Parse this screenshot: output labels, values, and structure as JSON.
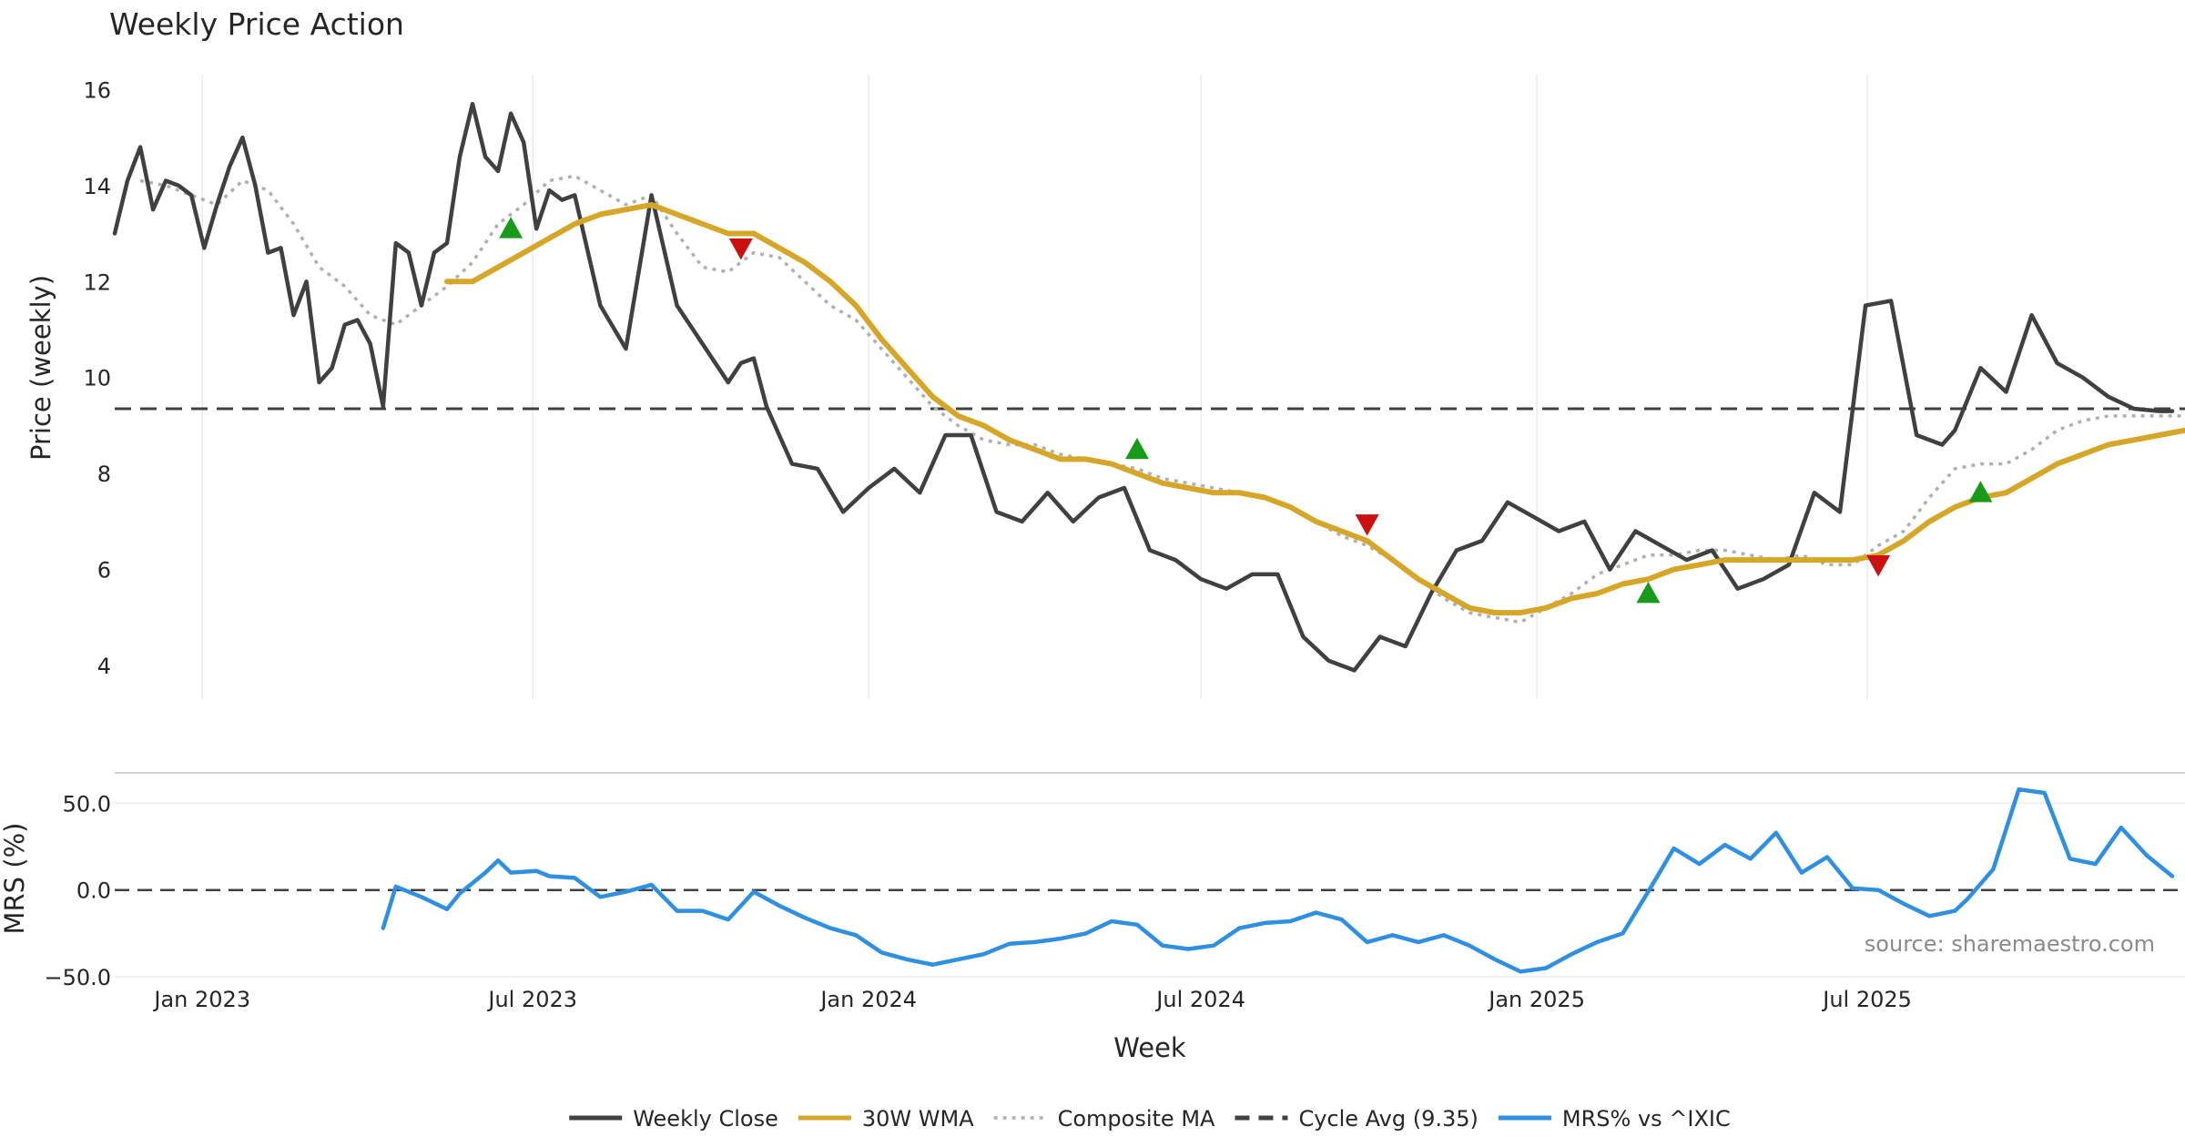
{
  "chart_data": [
    {
      "type": "line",
      "title": "Weekly Price Action",
      "ylabel": "Price (weekly)",
      "ylim": [
        3.3,
        16.5
      ],
      "yticks": [
        "4",
        "6",
        "8",
        "10",
        "12",
        "14",
        "16"
      ],
      "grid": "vertical",
      "reference_line": {
        "name": "Cycle Avg (9.35)",
        "value": 9.35
      },
      "series": [
        {
          "name": "Weekly Close",
          "color": "#404040",
          "style": "solid",
          "x": [
            "2022-11-14",
            "2022-11-21",
            "2022-11-28",
            "2022-12-05",
            "2022-12-12",
            "2022-12-19",
            "2022-12-26",
            "2023-01-02",
            "2023-01-09",
            "2023-01-16",
            "2023-01-23",
            "2023-01-30",
            "2023-02-06",
            "2023-02-13",
            "2023-02-20",
            "2023-02-27",
            "2023-03-06",
            "2023-03-13",
            "2023-03-20",
            "2023-03-27",
            "2023-04-03",
            "2023-04-10",
            "2023-04-17",
            "2023-04-24",
            "2023-05-01",
            "2023-05-08",
            "2023-05-15",
            "2023-05-22",
            "2023-05-29",
            "2023-06-05",
            "2023-06-12",
            "2023-06-19",
            "2023-06-26",
            "2023-07-03",
            "2023-07-10",
            "2023-07-17",
            "2023-07-24",
            "2023-08-07",
            "2023-08-21",
            "2023-09-04",
            "2023-09-18",
            "2023-10-02",
            "2023-10-16",
            "2023-10-23",
            "2023-10-30",
            "2023-11-06",
            "2023-11-13",
            "2023-11-20",
            "2023-12-04",
            "2023-12-18",
            "2024-01-01",
            "2024-01-15",
            "2024-01-29",
            "2024-02-12",
            "2024-02-26",
            "2024-03-11",
            "2024-03-25",
            "2024-04-08",
            "2024-04-22",
            "2024-05-06",
            "2024-05-20",
            "2024-06-03",
            "2024-06-17",
            "2024-07-01",
            "2024-07-15",
            "2024-07-29",
            "2024-08-12",
            "2024-08-26",
            "2024-09-09",
            "2024-09-23",
            "2024-10-07",
            "2024-10-21",
            "2024-11-04",
            "2024-11-18",
            "2024-12-02",
            "2024-12-16",
            "2024-12-30",
            "2025-01-13",
            "2025-01-27",
            "2025-02-10",
            "2025-02-24",
            "2025-03-10",
            "2025-03-24",
            "2025-04-07",
            "2025-04-21",
            "2025-05-05",
            "2025-05-19",
            "2025-06-02",
            "2025-06-16",
            "2025-06-30",
            "2025-07-14",
            "2025-07-28",
            "2025-08-11",
            "2025-08-18",
            "2025-09-01",
            "2025-09-15",
            "2025-09-29",
            "2025-10-13",
            "2025-10-27",
            "2025-11-10",
            "2025-11-24",
            "2025-12-08",
            "2025-12-15"
          ],
          "values": [
            13.0,
            14.1,
            14.8,
            13.5,
            14.1,
            14.0,
            13.8,
            12.7,
            13.6,
            14.4,
            15.0,
            14.0,
            12.6,
            12.7,
            11.3,
            12.0,
            9.9,
            10.2,
            11.1,
            11.2,
            10.7,
            9.4,
            12.8,
            12.6,
            11.5,
            12.6,
            12.8,
            14.6,
            15.7,
            14.6,
            14.3,
            15.5,
            14.9,
            13.1,
            13.9,
            13.7,
            13.8,
            11.5,
            10.6,
            13.8,
            11.5,
            10.7,
            9.9,
            10.3,
            10.4,
            9.4,
            8.8,
            8.2,
            8.1,
            7.2,
            7.7,
            8.1,
            7.6,
            8.8,
            8.8,
            7.2,
            7.0,
            7.6,
            7.0,
            7.5,
            7.7,
            6.4,
            6.2,
            5.8,
            5.6,
            5.9,
            5.9,
            4.6,
            4.1,
            3.9,
            4.6,
            4.4,
            5.5,
            6.4,
            6.6,
            7.4,
            7.1,
            6.8,
            7.0,
            6.0,
            6.8,
            6.5,
            6.2,
            6.4,
            5.6,
            5.8,
            6.1,
            7.6,
            7.2,
            11.5,
            11.6,
            8.8,
            8.6,
            8.9,
            10.2,
            9.7,
            11.3,
            10.3,
            10.0,
            9.6,
            9.35,
            9.3,
            9.3
          ]
        },
        {
          "name": "30W WMA",
          "color": "#d6a628",
          "style": "solid",
          "x": [
            "2023-05-15",
            "2023-05-29",
            "2023-06-12",
            "2023-06-26",
            "2023-07-10",
            "2023-07-24",
            "2023-08-07",
            "2023-08-21",
            "2023-09-04",
            "2023-09-18",
            "2023-10-02",
            "2023-10-16",
            "2023-10-30",
            "2023-11-13",
            "2023-11-27",
            "2023-12-11",
            "2023-12-25",
            "2024-01-08",
            "2024-01-22",
            "2024-02-05",
            "2024-02-19",
            "2024-03-04",
            "2024-03-18",
            "2024-04-01",
            "2024-04-15",
            "2024-04-29",
            "2024-05-13",
            "2024-05-27",
            "2024-06-10",
            "2024-06-24",
            "2024-07-08",
            "2024-07-22",
            "2024-08-05",
            "2024-08-19",
            "2024-09-02",
            "2024-09-16",
            "2024-09-30",
            "2024-10-14",
            "2024-10-28",
            "2024-11-11",
            "2024-11-25",
            "2024-12-09",
            "2024-12-23",
            "2025-01-06",
            "2025-01-20",
            "2025-02-03",
            "2025-02-17",
            "2025-03-03",
            "2025-03-17",
            "2025-03-31",
            "2025-04-14",
            "2025-04-28",
            "2025-05-12",
            "2025-05-26",
            "2025-06-09",
            "2025-06-23",
            "2025-07-07",
            "2025-07-21",
            "2025-08-04",
            "2025-08-18",
            "2025-09-01",
            "2025-09-15",
            "2025-09-29",
            "2025-10-13",
            "2025-10-27",
            "2025-11-10",
            "2025-11-24",
            "2025-12-08",
            "2025-12-22"
          ],
          "values": [
            12.0,
            12.0,
            12.3,
            12.6,
            12.9,
            13.2,
            13.4,
            13.5,
            13.6,
            13.4,
            13.2,
            13.0,
            13.0,
            12.7,
            12.4,
            12.0,
            11.5,
            10.8,
            10.2,
            9.6,
            9.2,
            9.0,
            8.7,
            8.5,
            8.3,
            8.3,
            8.2,
            8.0,
            7.8,
            7.7,
            7.6,
            7.6,
            7.5,
            7.3,
            7.0,
            6.8,
            6.6,
            6.2,
            5.8,
            5.5,
            5.2,
            5.1,
            5.1,
            5.2,
            5.4,
            5.5,
            5.7,
            5.8,
            6.0,
            6.1,
            6.2,
            6.2,
            6.2,
            6.2,
            6.2,
            6.2,
            6.3,
            6.6,
            7.0,
            7.3,
            7.5,
            7.6,
            7.9,
            8.2,
            8.4,
            8.6,
            8.7,
            8.8,
            8.9
          ]
        },
        {
          "name": "Composite MA",
          "color": "#b0b0b0",
          "style": "dotted",
          "x": [
            "2022-11-28",
            "2022-12-12",
            "2022-12-26",
            "2023-01-09",
            "2023-01-23",
            "2023-02-06",
            "2023-02-20",
            "2023-03-06",
            "2023-03-20",
            "2023-04-03",
            "2023-04-17",
            "2023-05-01",
            "2023-05-15",
            "2023-05-29",
            "2023-06-12",
            "2023-06-26",
            "2023-07-10",
            "2023-07-24",
            "2023-08-07",
            "2023-08-21",
            "2023-09-04",
            "2023-09-18",
            "2023-10-02",
            "2023-10-16",
            "2023-10-30",
            "2023-11-13",
            "2023-11-27",
            "2023-12-11",
            "2023-12-25",
            "2024-01-08",
            "2024-01-22",
            "2024-02-05",
            "2024-02-19",
            "2024-03-04",
            "2024-03-18",
            "2024-04-01",
            "2024-04-15",
            "2024-04-29",
            "2024-05-13",
            "2024-05-27",
            "2024-06-10",
            "2024-06-24",
            "2024-07-08",
            "2024-07-22",
            "2024-08-05",
            "2024-08-19",
            "2024-09-02",
            "2024-09-16",
            "2024-09-30",
            "2024-10-14",
            "2024-10-28",
            "2024-11-11",
            "2024-11-25",
            "2024-12-09",
            "2024-12-23",
            "2025-01-06",
            "2025-01-20",
            "2025-02-03",
            "2025-02-17",
            "2025-03-03",
            "2025-03-17",
            "2025-03-31",
            "2025-04-14",
            "2025-04-28",
            "2025-05-12",
            "2025-05-26",
            "2025-06-09",
            "2025-06-23",
            "2025-07-07",
            "2025-07-21",
            "2025-08-04",
            "2025-08-18",
            "2025-09-01",
            "2025-09-15",
            "2025-09-29",
            "2025-10-13",
            "2025-10-27",
            "2025-11-10",
            "2025-11-24",
            "2025-12-08",
            "2025-12-22"
          ],
          "values": [
            14.1,
            14.0,
            13.8,
            13.6,
            14.1,
            13.9,
            13.2,
            12.3,
            11.9,
            11.3,
            11.1,
            11.5,
            11.9,
            12.4,
            13.2,
            13.6,
            14.1,
            14.2,
            13.9,
            13.6,
            13.8,
            13.0,
            12.3,
            12.2,
            12.6,
            12.5,
            12.0,
            11.5,
            11.2,
            10.6,
            10.0,
            9.4,
            9.0,
            8.7,
            8.6,
            8.6,
            8.4,
            8.3,
            8.2,
            8.1,
            7.9,
            7.8,
            7.7,
            7.6,
            7.5,
            7.3,
            7.0,
            6.7,
            6.5,
            6.2,
            5.8,
            5.4,
            5.1,
            5.0,
            4.9,
            5.2,
            5.5,
            5.9,
            6.1,
            6.3,
            6.3,
            6.4,
            6.4,
            6.3,
            6.2,
            6.3,
            6.1,
            6.1,
            6.5,
            6.8,
            7.5,
            8.1,
            8.2,
            8.2,
            8.5,
            8.9,
            9.1,
            9.2,
            9.2,
            9.2,
            9.2
          ]
        }
      ],
      "markers": [
        {
          "type": "buy",
          "shape": "triangle-up",
          "color": "#1a9a1a",
          "x": "2023-06-19",
          "y": 13.1
        },
        {
          "type": "sell",
          "shape": "triangle-down",
          "color": "#cc1010",
          "x": "2023-10-23",
          "y": 12.7
        },
        {
          "type": "buy",
          "shape": "triangle-up",
          "color": "#1a9a1a",
          "x": "2024-05-27",
          "y": 8.5
        },
        {
          "type": "sell",
          "shape": "triangle-down",
          "color": "#cc1010",
          "x": "2024-09-30",
          "y": 6.95
        },
        {
          "type": "buy",
          "shape": "triangle-up",
          "color": "#1a9a1a",
          "x": "2025-03-03",
          "y": 5.5
        },
        {
          "type": "sell",
          "shape": "triangle-down",
          "color": "#cc1010",
          "x": "2025-07-07",
          "y": 6.1
        },
        {
          "type": "buy",
          "shape": "triangle-up",
          "color": "#1a9a1a",
          "x": "2025-09-01",
          "y": 7.6
        }
      ]
    },
    {
      "type": "line",
      "ylabel": "MRS (%)",
      "xlabel": "Week",
      "ylim": [
        -50,
        67
      ],
      "yticks": [
        "50.0",
        "0.0",
        "−50.0"
      ],
      "xticks": [
        {
          "x": "2023-01-01",
          "label": "Jan 2023"
        },
        {
          "x": "2023-07-01",
          "label": "Jul 2023"
        },
        {
          "x": "2024-01-01",
          "label": "Jan 2024"
        },
        {
          "x": "2024-07-01",
          "label": "Jul 2024"
        },
        {
          "x": "2025-01-01",
          "label": "Jan 2025"
        },
        {
          "x": "2025-07-01",
          "label": "Jul 2025"
        }
      ],
      "reference_line": {
        "value": 0
      },
      "series": [
        {
          "name": "MRS% vs ^IXIC",
          "color": "#2f8fe0",
          "style": "solid",
          "x": [
            "2023-04-10",
            "2023-04-17",
            "2023-05-01",
            "2023-05-15",
            "2023-05-22",
            "2023-06-05",
            "2023-06-12",
            "2023-06-19",
            "2023-07-03",
            "2023-07-10",
            "2023-07-24",
            "2023-08-07",
            "2023-08-21",
            "2023-09-04",
            "2023-09-18",
            "2023-10-02",
            "2023-10-16",
            "2023-10-30",
            "2023-11-13",
            "2023-11-27",
            "2023-12-11",
            "2023-12-25",
            "2024-01-08",
            "2024-01-22",
            "2024-02-05",
            "2024-02-19",
            "2024-03-04",
            "2024-03-18",
            "2024-04-01",
            "2024-04-15",
            "2024-04-29",
            "2024-05-13",
            "2024-05-27",
            "2024-06-10",
            "2024-06-24",
            "2024-07-08",
            "2024-07-22",
            "2024-08-05",
            "2024-08-19",
            "2024-09-02",
            "2024-09-16",
            "2024-09-30",
            "2024-10-14",
            "2024-10-28",
            "2024-11-11",
            "2024-11-25",
            "2024-12-09",
            "2024-12-23",
            "2025-01-06",
            "2025-01-20",
            "2025-02-03",
            "2025-02-17",
            "2025-03-03",
            "2025-03-17",
            "2025-03-31",
            "2025-04-14",
            "2025-04-28",
            "2025-05-12",
            "2025-05-26",
            "2025-06-09",
            "2025-06-23",
            "2025-07-07",
            "2025-07-21",
            "2025-08-04",
            "2025-08-18",
            "2025-08-25",
            "2025-09-08",
            "2025-09-22",
            "2025-10-06",
            "2025-10-20",
            "2025-11-03",
            "2025-11-17",
            "2025-12-01",
            "2025-12-15"
          ],
          "values": [
            -22,
            2,
            -4,
            -11,
            -2,
            10,
            17,
            10,
            11,
            8,
            7,
            -4,
            -1,
            3,
            -12,
            -12,
            -17,
            -1,
            -9,
            -16,
            -22,
            -26,
            -36,
            -40,
            -43,
            -40,
            -37,
            -31,
            -30,
            -28,
            -25,
            -18,
            -20,
            -32,
            -34,
            -32,
            -22,
            -19,
            -18,
            -13,
            -17,
            -30,
            -26,
            -30,
            -26,
            -32,
            -40,
            -47,
            -45,
            -37,
            -30,
            -25,
            -1,
            24,
            15,
            26,
            18,
            33,
            10,
            19,
            1,
            0,
            -8,
            -15,
            -12,
            -5,
            12,
            58,
            56,
            18,
            15,
            36,
            20,
            8
          ]
        }
      ]
    }
  ],
  "legend": {
    "placement": "bottom",
    "items": [
      {
        "label": "Weekly Close",
        "color": "#404040",
        "style": "solid"
      },
      {
        "label": "30W WMA",
        "color": "#d6a628",
        "style": "solid"
      },
      {
        "label": "Composite MA",
        "color": "#b0b0b0",
        "style": "dotted"
      },
      {
        "label": "Cycle Avg (9.35)",
        "color": "#404040",
        "style": "dashed"
      },
      {
        "label": "MRS% vs ^IXIC",
        "color": "#2f8fe0",
        "style": "solid"
      }
    ]
  },
  "source_text": "source: sharemaestro.com"
}
